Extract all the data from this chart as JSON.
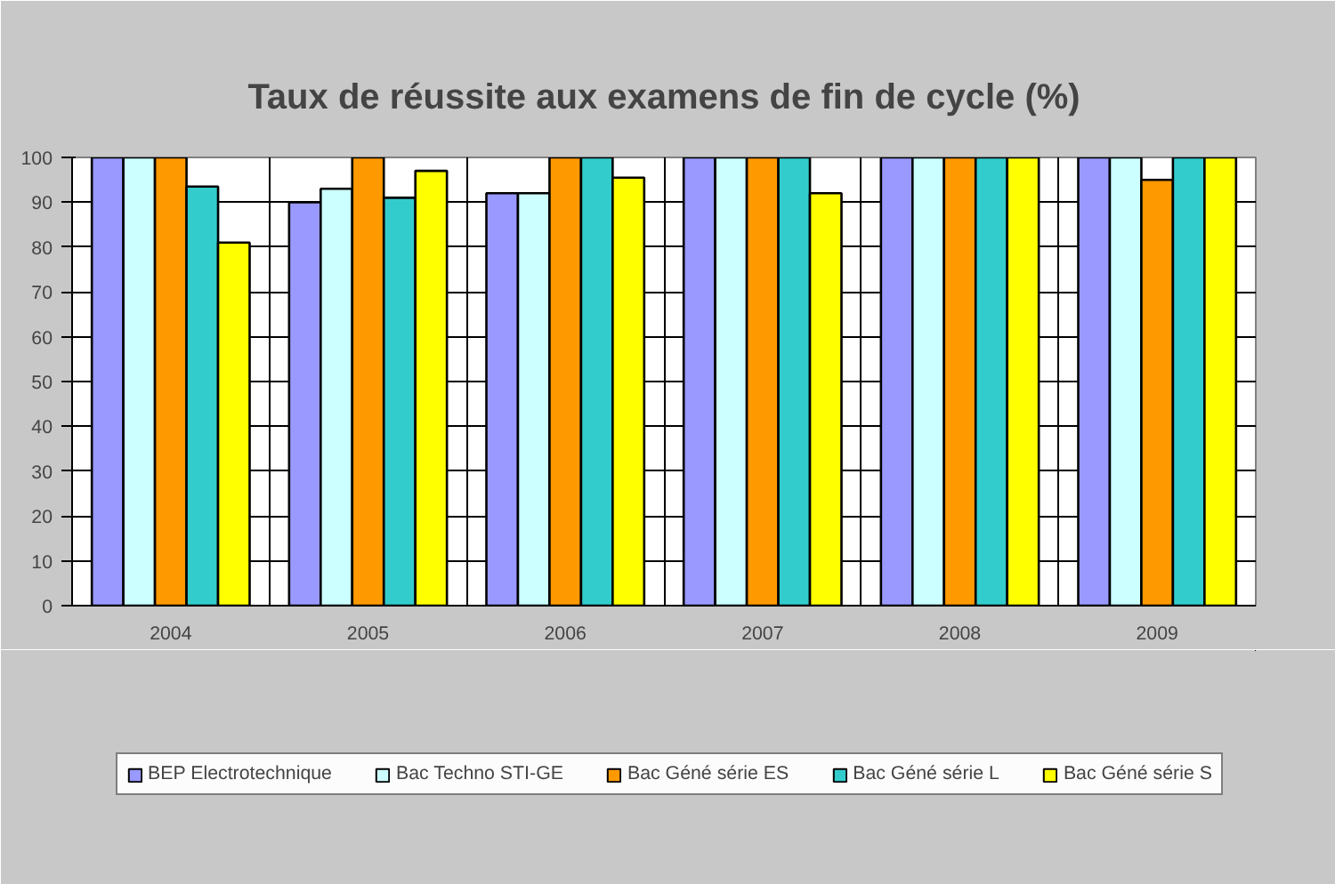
{
  "chart_data": {
    "type": "bar",
    "title": "Taux de réussite aux examens de fin de cycle (%)",
    "categories": [
      "2004",
      "2005",
      "2006",
      "2007",
      "2008",
      "2009"
    ],
    "series": [
      {
        "name": "BEP Electrotechnique",
        "color": "#9999ff",
        "values": [
          100,
          90,
          92,
          100,
          100,
          100
        ]
      },
      {
        "name": "Bac Techno STI-GE",
        "color": "#ccffff",
        "values": [
          100,
          93,
          92,
          100,
          100,
          100
        ]
      },
      {
        "name": "Bac Géné série ES",
        "color": "#ff9900",
        "values": [
          100,
          100,
          100,
          100,
          100,
          95
        ]
      },
      {
        "name": "Bac Géné série L",
        "color": "#33cccc",
        "values": [
          93.5,
          91,
          100,
          100,
          100,
          100
        ]
      },
      {
        "name": "Bac Géné série S",
        "color": "#ffff00",
        "values": [
          81,
          97,
          95.5,
          92,
          100,
          100
        ]
      }
    ],
    "ylim": [
      0,
      100
    ],
    "yticks": [
      0,
      10,
      20,
      30,
      40,
      50,
      60,
      70,
      80,
      90,
      100
    ],
    "grid": true,
    "legend": "bottom"
  }
}
